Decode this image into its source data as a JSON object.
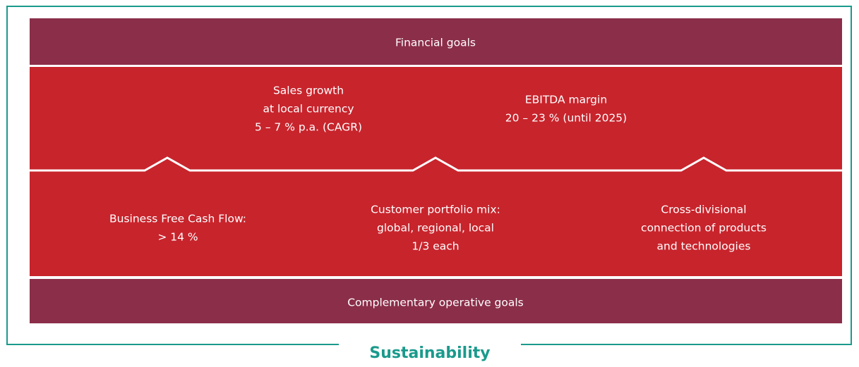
{
  "top_bar": {
    "label": "Financial goals"
  },
  "upper_goals": [
    {
      "lines": [
        "Sales growth",
        "at local currency",
        "5 – 7 % p.a. (CAGR)"
      ]
    },
    {
      "lines": [
        "EBITDA margin",
        "20 – 23 % (until 2025)"
      ]
    }
  ],
  "lower_goals": [
    {
      "lines": [
        "Business Free Cash Flow:",
        "> 14 %"
      ]
    },
    {
      "lines": [
        "Customer portfolio mix:",
        "global, regional, local",
        "1/3 each"
      ]
    },
    {
      "lines": [
        "Cross-divisional",
        "connection of products",
        "and technologies"
      ]
    }
  ],
  "bottom_bar": {
    "label": "Complementary operative goals"
  },
  "frame": {
    "label": "Sustainability"
  }
}
